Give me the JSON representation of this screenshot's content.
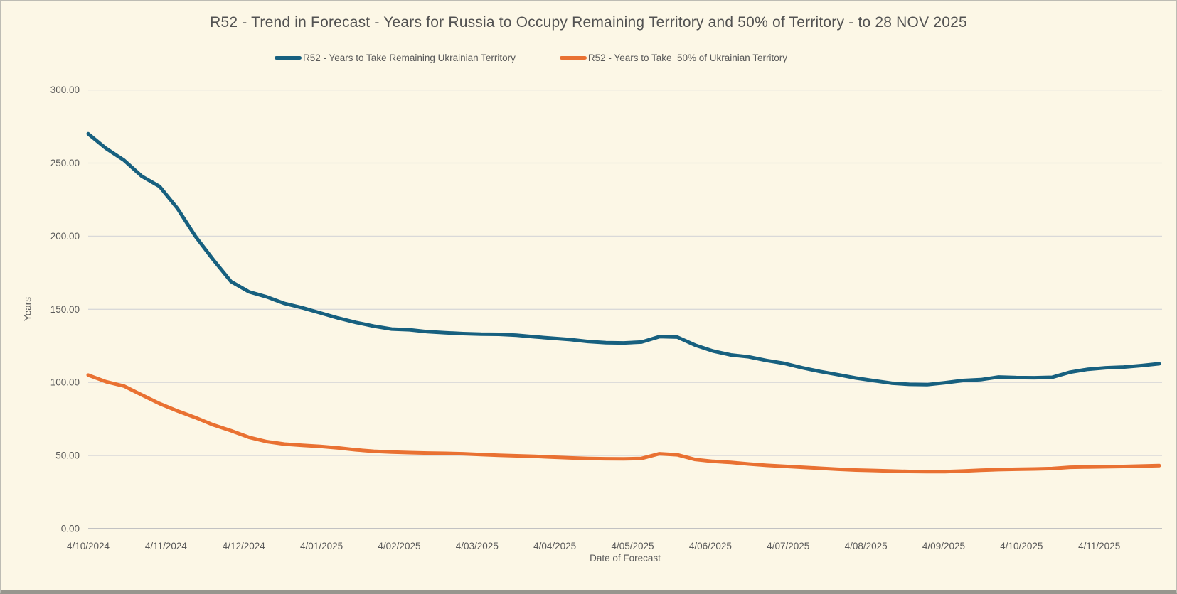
{
  "chart_data": {
    "type": "line",
    "title": "R52 - Trend in Forecast - Years for Russia to Occupy Remaining Territory and 50% of Territory - to 28 NOV 2025",
    "xlabel": "Date of Forecast",
    "ylabel": "Years",
    "ylim": [
      0,
      300
    ],
    "ytick_labels": [
      "0.00",
      "50.00",
      "100.00",
      "150.00",
      "200.00",
      "250.00",
      "300.00"
    ],
    "xtick_labels": [
      "4/10/2024",
      "4/11/2024",
      "4/12/2024",
      "4/01/2025",
      "4/02/2025",
      "4/03/2025",
      "4/04/2025",
      "4/05/2025",
      "4/06/2025",
      "4/07/2025",
      "4/08/2025",
      "4/09/2025",
      "4/10/2025",
      "4/11/2025"
    ],
    "grid": "horizontal",
    "legend_position": "top",
    "background_color": "#fcf7e6",
    "gridline_color": "#d9d9d9",
    "axis_line_color": "#c2c2c2",
    "text_color": "#595959",
    "x_sampling": "weekly forecast points from 4/10/2024 through 28 NOV 2025",
    "series": [
      {
        "name": "R52 - Years to Take Remaining Ukrainian Territory",
        "color": "#17607f",
        "values": [
          270,
          260,
          252,
          241,
          234,
          219,
          200,
          184,
          169,
          162,
          158.5,
          154,
          151,
          147.5,
          144,
          141,
          138.5,
          136.5,
          136,
          134.7,
          134,
          133.4,
          133,
          132.9,
          132.3,
          131.2,
          130.2,
          129.3,
          128,
          127.2,
          127,
          127.6,
          131.3,
          131,
          125.5,
          121.5,
          118.8,
          117.5,
          115,
          113,
          110,
          107.5,
          105.3,
          103,
          101.2,
          99.5,
          98.7,
          98.5,
          99.8,
          101.3,
          101.9,
          103.7,
          103.3,
          103.2,
          103.5,
          107,
          109,
          110,
          110.5,
          111.5,
          112.8
        ]
      },
      {
        "name": "R52 - Years to Take  50% of Ukrainian Territory",
        "color": "#e97132",
        "values": [
          105,
          100.5,
          97.5,
          91.5,
          85.5,
          80.5,
          76,
          71,
          67,
          62.5,
          59.5,
          57.8,
          57,
          56.2,
          55.2,
          53.9,
          52.9,
          52.4,
          52,
          51.7,
          51.5,
          51.2,
          50.7,
          50.2,
          49.8,
          49.4,
          48.9,
          48.4,
          48,
          47.8,
          47.7,
          48,
          51.2,
          50.5,
          47.3,
          46,
          45.3,
          44.2,
          43.3,
          42.6,
          42,
          41.3,
          40.6,
          40.1,
          39.8,
          39.4,
          39.1,
          39,
          39,
          39.4,
          40,
          40.4,
          40.6,
          40.8,
          41.1,
          42,
          42.2,
          42.3,
          42.5,
          42.8,
          43.1
        ]
      }
    ]
  }
}
